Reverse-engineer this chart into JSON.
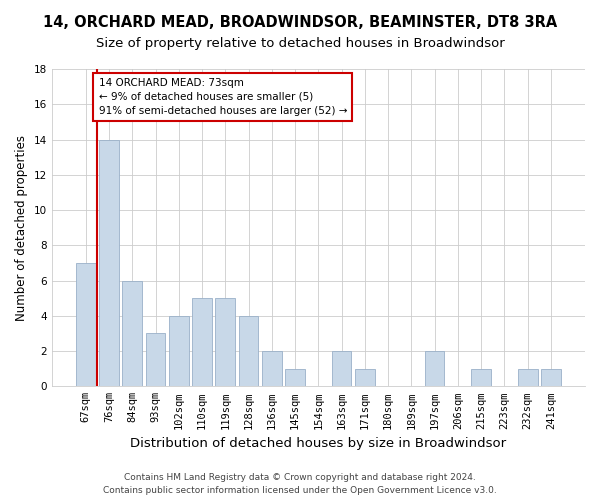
{
  "title": "14, ORCHARD MEAD, BROADWINDSOR, BEAMINSTER, DT8 3RA",
  "subtitle": "Size of property relative to detached houses in Broadwindsor",
  "xlabel": "Distribution of detached houses by size in Broadwindsor",
  "ylabel": "Number of detached properties",
  "categories": [
    "67sqm",
    "76sqm",
    "84sqm",
    "93sqm",
    "102sqm",
    "110sqm",
    "119sqm",
    "128sqm",
    "136sqm",
    "145sqm",
    "154sqm",
    "163sqm",
    "171sqm",
    "180sqm",
    "189sqm",
    "197sqm",
    "206sqm",
    "215sqm",
    "223sqm",
    "232sqm",
    "241sqm"
  ],
  "values": [
    7,
    14,
    6,
    3,
    4,
    5,
    5,
    4,
    2,
    1,
    0,
    2,
    1,
    0,
    0,
    2,
    0,
    1,
    0,
    1,
    1
  ],
  "bar_color": "#c8d8e8",
  "bar_edge_color": "#9ab0c8",
  "vline_color": "#cc0000",
  "annotation_text": "14 ORCHARD MEAD: 73sqm\n← 9% of detached houses are smaller (5)\n91% of semi-detached houses are larger (52) →",
  "annotation_box_color": "#ffffff",
  "annotation_box_edge": "#cc0000",
  "ylim": [
    0,
    18
  ],
  "yticks": [
    0,
    2,
    4,
    6,
    8,
    10,
    12,
    14,
    16,
    18
  ],
  "footnote": "Contains HM Land Registry data © Crown copyright and database right 2024.\nContains public sector information licensed under the Open Government Licence v3.0.",
  "bg_color": "#ffffff",
  "plot_bg_color": "#ffffff",
  "grid_color": "#cccccc",
  "title_fontsize": 10.5,
  "subtitle_fontsize": 9.5,
  "xlabel_fontsize": 9.5,
  "ylabel_fontsize": 8.5,
  "tick_fontsize": 7.5,
  "footnote_fontsize": 6.5
}
